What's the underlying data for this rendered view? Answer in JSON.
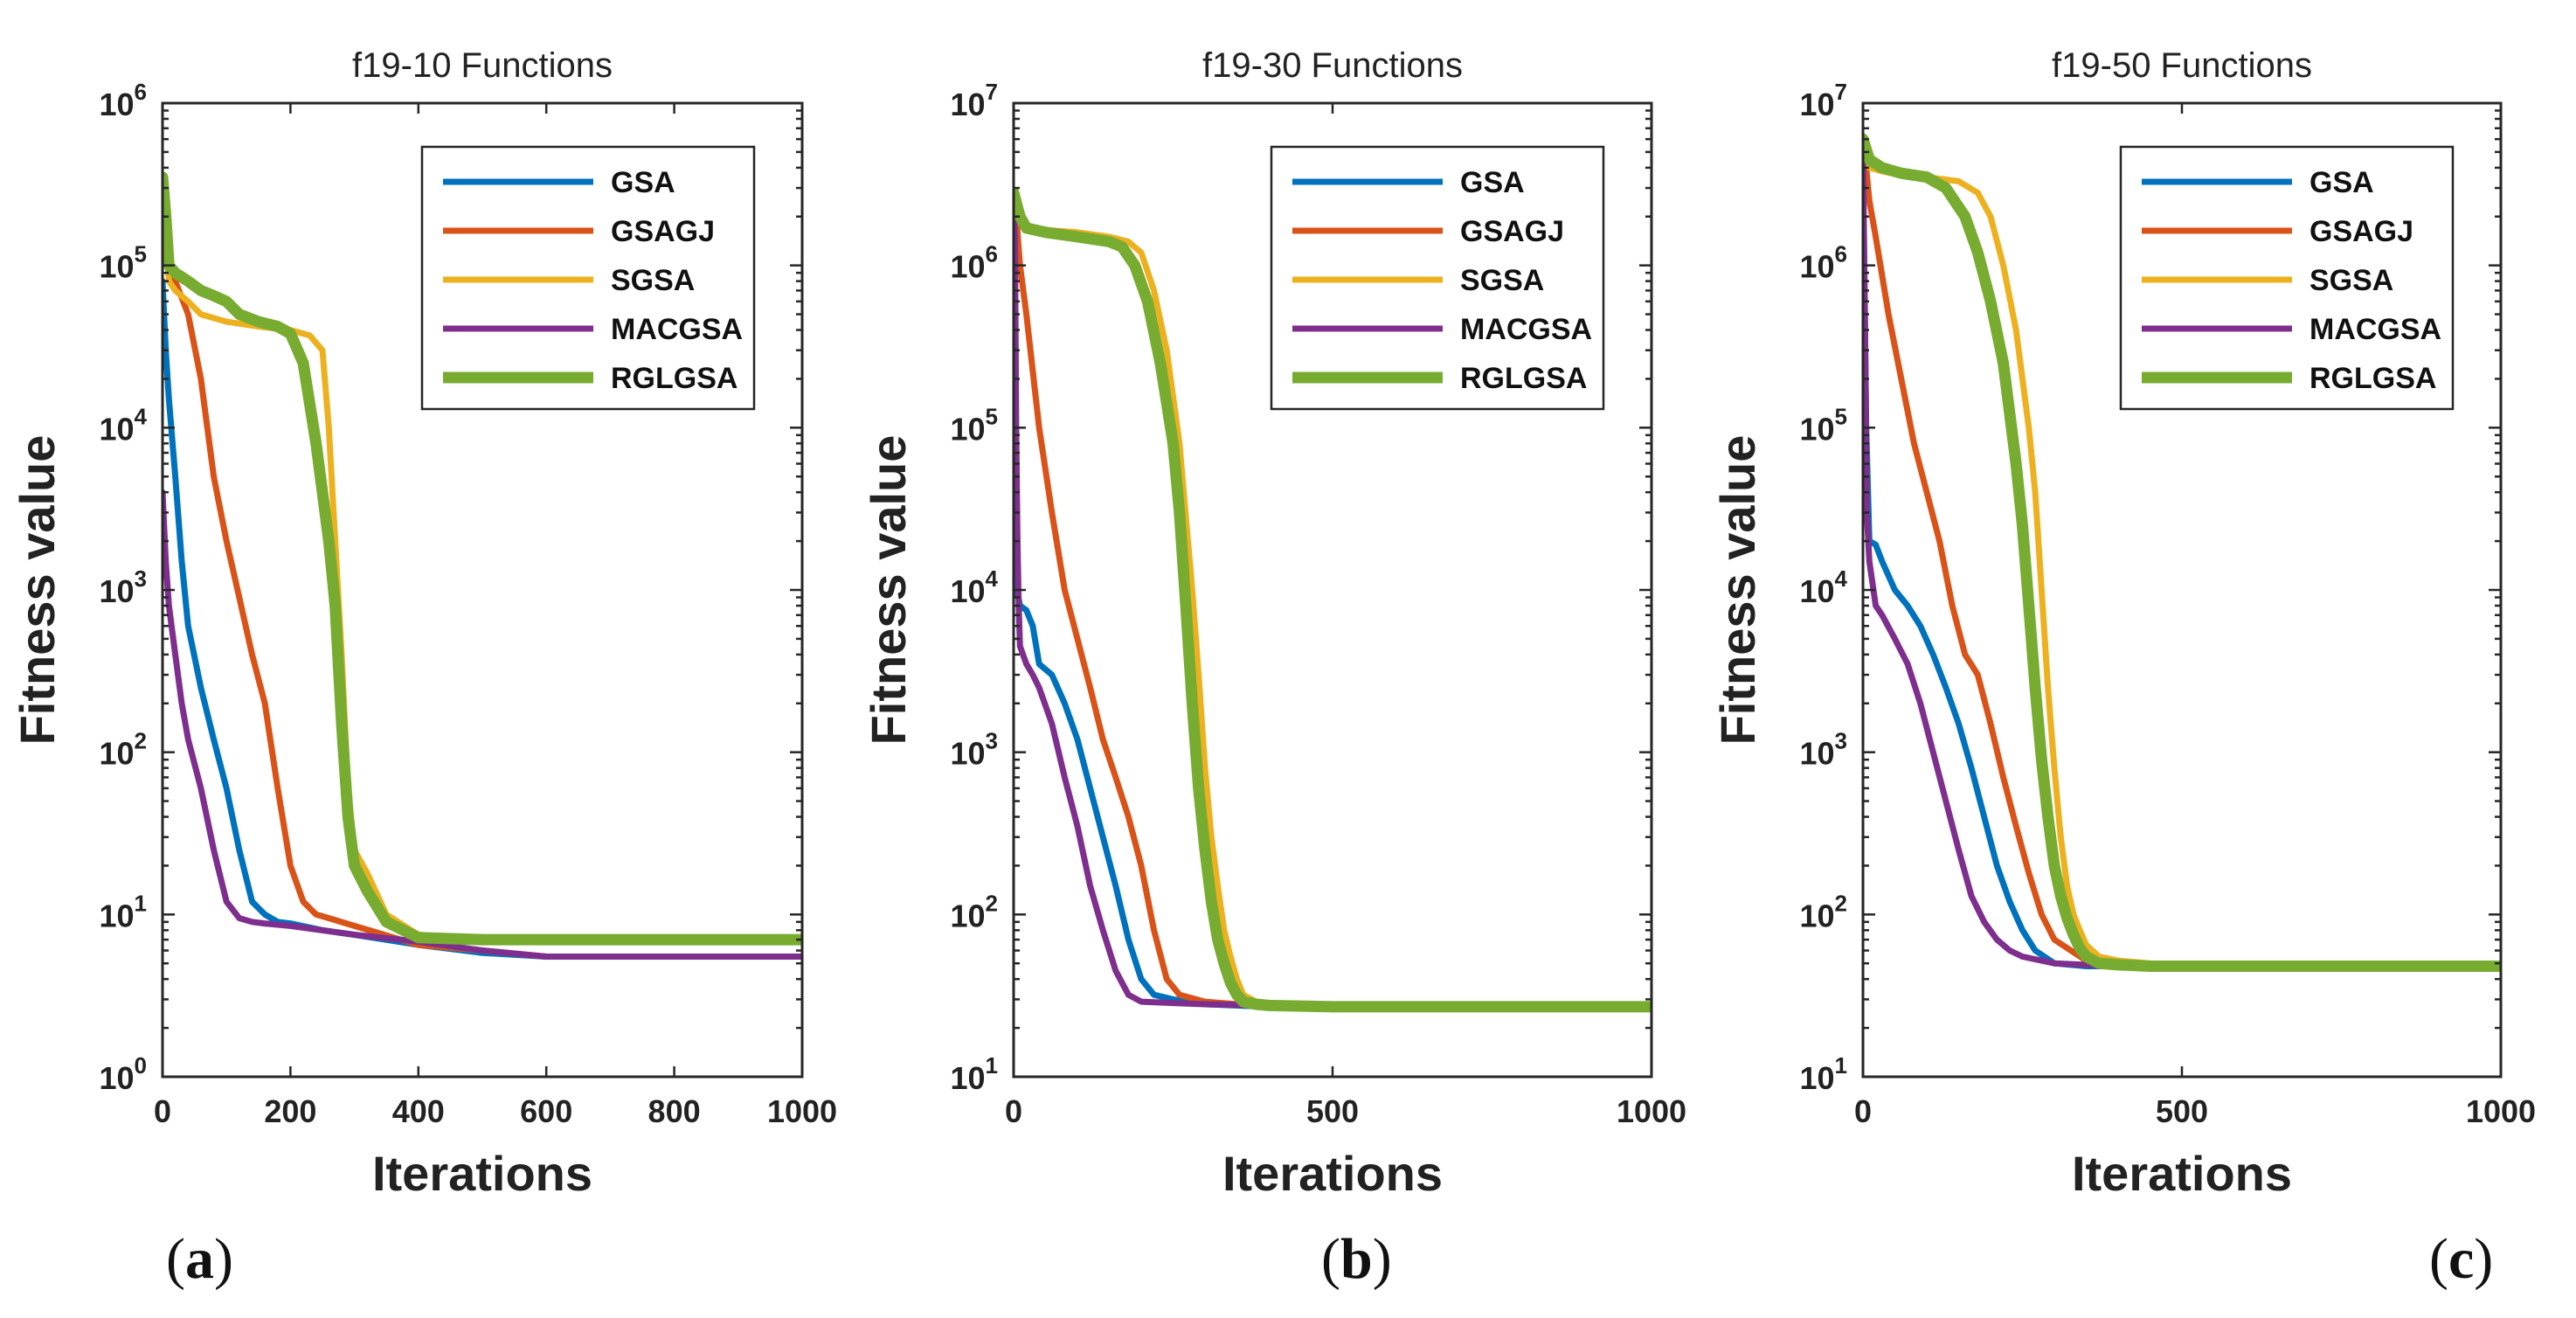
{
  "chart_data": [
    {
      "type": "line",
      "panel_label": "a",
      "title": "f19-10 Functions",
      "xlabel": "Iterations",
      "ylabel": "Fitness value",
      "xscale": "linear",
      "yscale": "log",
      "xlim": [
        0,
        1000
      ],
      "ylim": [
        1,
        1000000
      ],
      "xticks": [
        0,
        200,
        400,
        600,
        800,
        1000
      ],
      "xtick_labels": [
        "0",
        "200",
        "400",
        "600",
        "800",
        "1000"
      ],
      "ytick_exponents": [
        0,
        1,
        2,
        3,
        4,
        5,
        6
      ],
      "yticks_base": "10",
      "legend_position": "top-right",
      "series": [
        {
          "name": "GSA",
          "color": "#0072BD",
          "x": [
            0,
            5,
            10,
            20,
            30,
            40,
            60,
            80,
            100,
            120,
            140,
            160,
            180,
            200,
            250,
            300,
            400,
            500,
            600,
            800,
            1000
          ],
          "y": [
            80000,
            30000,
            15000,
            5000,
            1500,
            600,
            250,
            120,
            60,
            25,
            12,
            10,
            9,
            8.8,
            8,
            7.5,
            6.5,
            5.8,
            5.5,
            5.5,
            5.5
          ]
        },
        {
          "name": "GSAGJ",
          "color": "#D95319",
          "x": [
            0,
            10,
            20,
            40,
            60,
            80,
            100,
            120,
            140,
            160,
            180,
            200,
            220,
            240,
            260,
            300,
            400,
            500,
            600,
            800,
            1000
          ],
          "y": [
            150000,
            110000,
            80000,
            50000,
            20000,
            5000,
            2000,
            900,
            400,
            200,
            60,
            20,
            12,
            10,
            9.5,
            8.5,
            6.5,
            6,
            5.5,
            5.5,
            5.5
          ]
        },
        {
          "name": "SGSA",
          "color": "#EDB120",
          "x": [
            0,
            10,
            20,
            40,
            60,
            100,
            150,
            200,
            230,
            250,
            260,
            270,
            280,
            290,
            300,
            320,
            350,
            400,
            500,
            600,
            800,
            1000
          ],
          "y": [
            300000,
            80000,
            70000,
            60000,
            50000,
            45000,
            42000,
            40000,
            37000,
            30000,
            10000,
            2000,
            400,
            60,
            25,
            18,
            10,
            7.5,
            7,
            7,
            7,
            7
          ]
        },
        {
          "name": "MACGSA",
          "color": "#7E2F8E",
          "x": [
            0,
            5,
            10,
            20,
            30,
            40,
            60,
            80,
            100,
            120,
            140,
            160,
            200,
            300,
            400,
            500,
            600,
            800,
            1000
          ],
          "y": [
            4000,
            1500,
            800,
            400,
            200,
            120,
            60,
            25,
            12,
            9.5,
            9,
            8.8,
            8.5,
            7.5,
            6.8,
            6,
            5.5,
            5.5,
            5.5
          ]
        },
        {
          "name": "RGLGSA",
          "color": "#77AC30",
          "x": [
            0,
            5,
            10,
            20,
            40,
            60,
            80,
            100,
            120,
            150,
            180,
            200,
            220,
            240,
            250,
            260,
            270,
            280,
            290,
            300,
            320,
            350,
            400,
            500,
            600,
            800,
            1000
          ],
          "y": [
            350000,
            200000,
            100000,
            90000,
            80000,
            70000,
            65000,
            60000,
            50000,
            45000,
            42000,
            38000,
            25000,
            8000,
            4000,
            2000,
            800,
            150,
            40,
            20,
            14,
            9,
            7.2,
            7,
            7,
            7,
            7
          ]
        }
      ]
    },
    {
      "type": "line",
      "panel_label": "b",
      "title": "f19-30 Functions",
      "xlabel": "Iterations",
      "ylabel": "Fitness value",
      "xscale": "linear",
      "yscale": "log",
      "xlim": [
        0,
        1000
      ],
      "ylim": [
        10,
        10000000
      ],
      "xticks": [
        0,
        500,
        1000
      ],
      "xtick_labels": [
        "0",
        "500",
        "1000"
      ],
      "ytick_exponents": [
        1,
        2,
        3,
        4,
        5,
        6,
        7
      ],
      "yticks_base": "10",
      "legend_position": "top-right",
      "series": [
        {
          "name": "GSA",
          "color": "#0072BD",
          "x": [
            0,
            5,
            10,
            20,
            30,
            40,
            60,
            80,
            100,
            120,
            140,
            160,
            180,
            200,
            220,
            250,
            300,
            400,
            500,
            600,
            800,
            1000
          ],
          "y": [
            30000,
            10000,
            8000,
            7500,
            6000,
            3500,
            3000,
            2000,
            1200,
            600,
            300,
            150,
            70,
            40,
            32,
            30,
            28,
            27,
            27,
            27,
            27,
            27
          ]
        },
        {
          "name": "GSAGJ",
          "color": "#D95319",
          "x": [
            0,
            5,
            10,
            20,
            40,
            60,
            80,
            100,
            120,
            140,
            160,
            180,
            200,
            220,
            240,
            260,
            300,
            400,
            500,
            600,
            800,
            1000
          ],
          "y": [
            2000000,
            1800000,
            1000000,
            500000,
            100000,
            30000,
            10000,
            5000,
            2500,
            1200,
            700,
            400,
            200,
            80,
            40,
            32,
            29,
            27,
            27,
            27,
            27,
            27
          ]
        },
        {
          "name": "SGSA",
          "color": "#EDB120",
          "x": [
            0,
            10,
            20,
            50,
            100,
            150,
            180,
            200,
            220,
            240,
            260,
            280,
            290,
            300,
            310,
            320,
            330,
            340,
            350,
            360,
            380,
            400,
            500,
            600,
            800,
            1000
          ],
          "y": [
            2500000,
            2000000,
            1700000,
            1650000,
            1600000,
            1500000,
            1400000,
            1200000,
            700000,
            300000,
            80000,
            10000,
            3000,
            800,
            300,
            150,
            80,
            55,
            40,
            32,
            29,
            28,
            27,
            27,
            27,
            27
          ]
        },
        {
          "name": "MACGSA",
          "color": "#7E2F8E",
          "x": [
            0,
            2,
            4,
            6,
            8,
            10,
            20,
            30,
            40,
            60,
            80,
            100,
            120,
            140,
            160,
            180,
            200,
            250,
            300,
            400,
            500,
            600,
            800,
            1000
          ],
          "y": [
            2000000,
            1500000,
            100000,
            20000,
            8000,
            4500,
            3500,
            3000,
            2500,
            1500,
            700,
            350,
            150,
            80,
            45,
            32,
            29,
            28.5,
            28,
            27.5,
            27,
            27,
            27,
            27
          ]
        },
        {
          "name": "RGLGSA",
          "color": "#77AC30",
          "x": [
            0,
            10,
            20,
            50,
            100,
            150,
            170,
            190,
            210,
            230,
            250,
            260,
            270,
            280,
            290,
            300,
            310,
            320,
            330,
            340,
            350,
            360,
            380,
            400,
            500,
            600,
            800,
            1000
          ],
          "y": [
            2800000,
            2000000,
            1700000,
            1600000,
            1500000,
            1400000,
            1300000,
            1000000,
            600000,
            250000,
            80000,
            30000,
            8000,
            2000,
            600,
            250,
            120,
            70,
            50,
            38,
            32,
            29,
            28,
            27.5,
            27,
            27,
            27,
            27
          ]
        }
      ]
    },
    {
      "type": "line",
      "panel_label": "c",
      "title": "f19-50 Functions",
      "xlabel": "Iterations",
      "ylabel": "Fitness value",
      "xscale": "linear",
      "yscale": "log",
      "xlim": [
        0,
        1000
      ],
      "ylim": [
        10,
        10000000
      ],
      "xticks": [
        0,
        500,
        1000
      ],
      "xtick_labels": [
        "0",
        "500",
        "1000"
      ],
      "ytick_exponents": [
        1,
        2,
        3,
        4,
        5,
        6,
        7
      ],
      "yticks_base": "10",
      "legend_position": "top-right",
      "series": [
        {
          "name": "GSA",
          "color": "#0072BD",
          "x": [
            0,
            5,
            10,
            20,
            30,
            50,
            70,
            90,
            110,
            130,
            150,
            170,
            190,
            210,
            230,
            250,
            270,
            300,
            350,
            400,
            500,
            600,
            800,
            1000
          ],
          "y": [
            4000000,
            100000,
            20000,
            19000,
            15000,
            10000,
            8000,
            6000,
            4000,
            2500,
            1500,
            800,
            400,
            200,
            120,
            80,
            60,
            50,
            48,
            48,
            48,
            48,
            48,
            48
          ]
        },
        {
          "name": "GSAGJ",
          "color": "#D95319",
          "x": [
            0,
            5,
            10,
            20,
            40,
            60,
            80,
            100,
            120,
            140,
            160,
            180,
            200,
            220,
            240,
            260,
            280,
            300,
            350,
            400,
            500,
            600,
            800,
            1000
          ],
          "y": [
            5000000,
            4000000,
            2500000,
            1500000,
            500000,
            200000,
            80000,
            40000,
            20000,
            8000,
            4000,
            3000,
            1500,
            700,
            350,
            180,
            100,
            70,
            52,
            49,
            48,
            48,
            48,
            48
          ]
        },
        {
          "name": "SGSA",
          "color": "#EDB120",
          "x": [
            0,
            10,
            30,
            60,
            100,
            150,
            180,
            200,
            220,
            240,
            260,
            270,
            280,
            290,
            300,
            310,
            320,
            330,
            340,
            350,
            370,
            400,
            450,
            500,
            600,
            800,
            1000
          ],
          "y": [
            5500000,
            4000000,
            3800000,
            3600000,
            3500000,
            3300000,
            2800000,
            2000000,
            1000000,
            400000,
            100000,
            40000,
            10000,
            2500,
            800,
            300,
            150,
            100,
            80,
            65,
            55,
            52,
            50,
            48,
            48,
            48,
            48
          ]
        },
        {
          "name": "MACGSA",
          "color": "#7E2F8E",
          "x": [
            0,
            3,
            6,
            10,
            20,
            30,
            50,
            70,
            90,
            110,
            130,
            150,
            170,
            190,
            210,
            230,
            250,
            300,
            350,
            400,
            500,
            600,
            800,
            1000
          ],
          "y": [
            5000000,
            500000,
            30000,
            15000,
            8000,
            7000,
            5000,
            3500,
            2000,
            1000,
            500,
            250,
            130,
            90,
            70,
            60,
            55,
            50,
            49,
            48,
            48,
            48,
            48,
            48
          ]
        },
        {
          "name": "RGLGSA",
          "color": "#77AC30",
          "x": [
            0,
            10,
            30,
            60,
            100,
            130,
            160,
            180,
            200,
            220,
            240,
            250,
            260,
            270,
            280,
            290,
            300,
            310,
            320,
            330,
            340,
            350,
            370,
            400,
            450,
            500,
            600,
            800,
            1000
          ],
          "y": [
            6000000,
            4500000,
            4000000,
            3700000,
            3500000,
            3000000,
            2000000,
            1200000,
            600000,
            250000,
            60000,
            25000,
            8000,
            2500,
            900,
            400,
            200,
            130,
            95,
            75,
            62,
            55,
            50,
            49,
            48,
            48,
            48,
            48,
            48
          ]
        }
      ]
    }
  ]
}
